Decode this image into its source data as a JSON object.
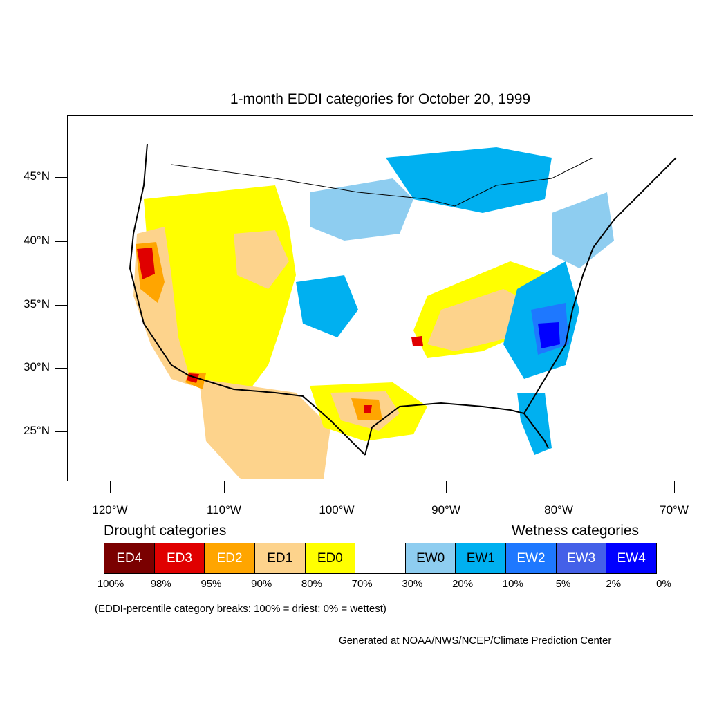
{
  "title": "1-month EDDI categories for October 20, 1999",
  "map": {
    "latitude_labels": [
      "45°N",
      "40°N",
      "35°N",
      "30°N",
      "25°N"
    ],
    "longitude_labels": [
      "120°W",
      "110°W",
      "100°W",
      "90°W",
      "80°W",
      "70°W"
    ]
  },
  "legend": {
    "drought_heading": "Drought categories",
    "wetness_heading": "Wetness categories",
    "categories": [
      {
        "label": "ED4",
        "color": "#7a0000",
        "text_color": "#ffffff"
      },
      {
        "label": "ED3",
        "color": "#e00000",
        "text_color": "#ffffff"
      },
      {
        "label": "ED2",
        "color": "#ffa500",
        "text_color": "#ffffff"
      },
      {
        "label": "ED1",
        "color": "#fdd38c",
        "text_color": "#000000"
      },
      {
        "label": "ED0",
        "color": "#ffff00",
        "text_color": "#000000"
      },
      {
        "label": "",
        "color": "#ffffff",
        "text_color": "#000000"
      },
      {
        "label": "EW0",
        "color": "#8ecdf0",
        "text_color": "#000000"
      },
      {
        "label": "EW1",
        "color": "#00b0f0",
        "text_color": "#000000"
      },
      {
        "label": "EW2",
        "color": "#1e78ff",
        "text_color": "#ffffff"
      },
      {
        "label": "EW3",
        "color": "#4460e8",
        "text_color": "#ffffff"
      },
      {
        "label": "EW4",
        "color": "#0000ff",
        "text_color": "#ffffff"
      }
    ],
    "percentiles": [
      "100%",
      "98%",
      "95%",
      "90%",
      "80%",
      "70%",
      "30%",
      "20%",
      "10%",
      "5%",
      "2%",
      "0%"
    ]
  },
  "note": "(EDDI-percentile category breaks: 100% = driest; 0% = wettest)",
  "credit": "Generated at NOAA/NWS/NCEP/Climate Prediction Center"
}
